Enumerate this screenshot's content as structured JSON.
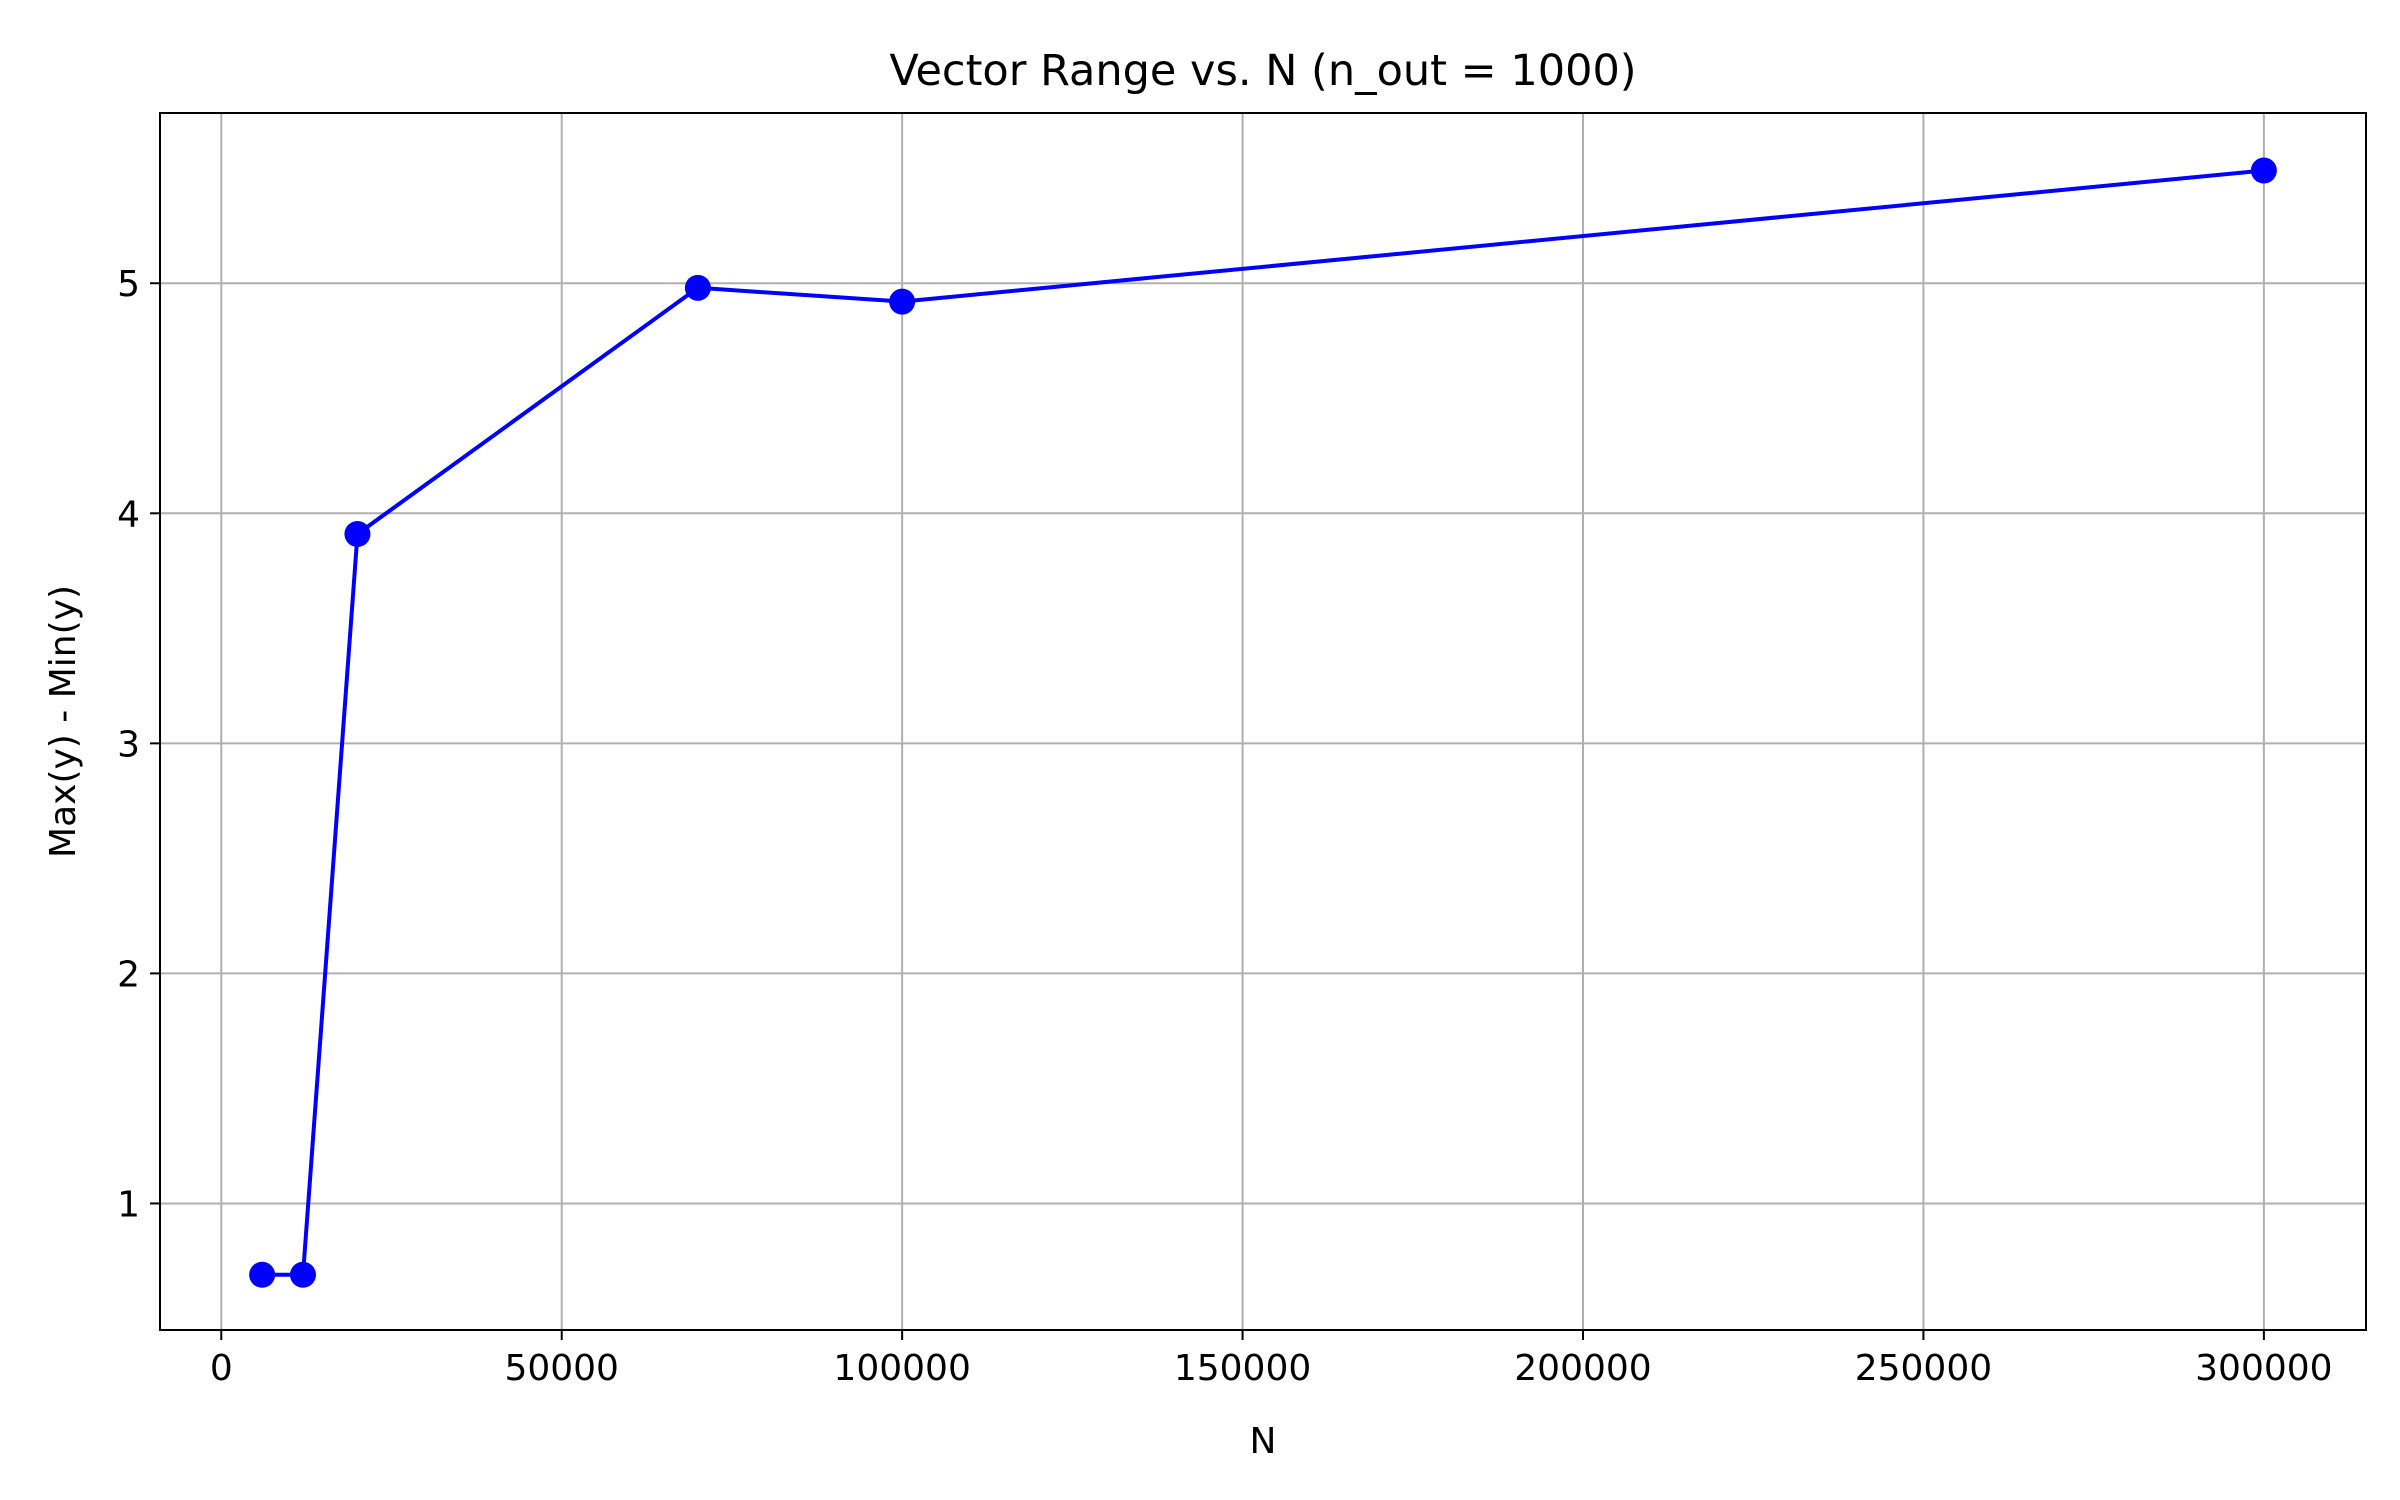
{
  "chart_data": {
    "type": "line",
    "title": "Vector Range vs. N (n_out = 1000)",
    "xlabel": "N",
    "ylabel": "Max(y) - Min(y)",
    "xlim": [
      -9000,
      315000
    ],
    "ylim": [
      0.45,
      5.74
    ],
    "xticks": [
      0,
      50000,
      100000,
      150000,
      200000,
      250000,
      300000
    ],
    "xtick_labels": [
      "0",
      "50000",
      "100000",
      "150000",
      "200000",
      "250000",
      "300000"
    ],
    "yticks": [
      1,
      2,
      3,
      4,
      5
    ],
    "ytick_labels": [
      "1",
      "2",
      "3",
      "4",
      "5"
    ],
    "grid": true,
    "legend": "none",
    "series": [
      {
        "color": "#0000ff",
        "marker": "circle",
        "x": [
          6000,
          12000,
          20000,
          70000,
          100000,
          300000
        ],
        "y": [
          0.69,
          0.69,
          3.91,
          4.98,
          4.92,
          5.49
        ]
      }
    ]
  }
}
